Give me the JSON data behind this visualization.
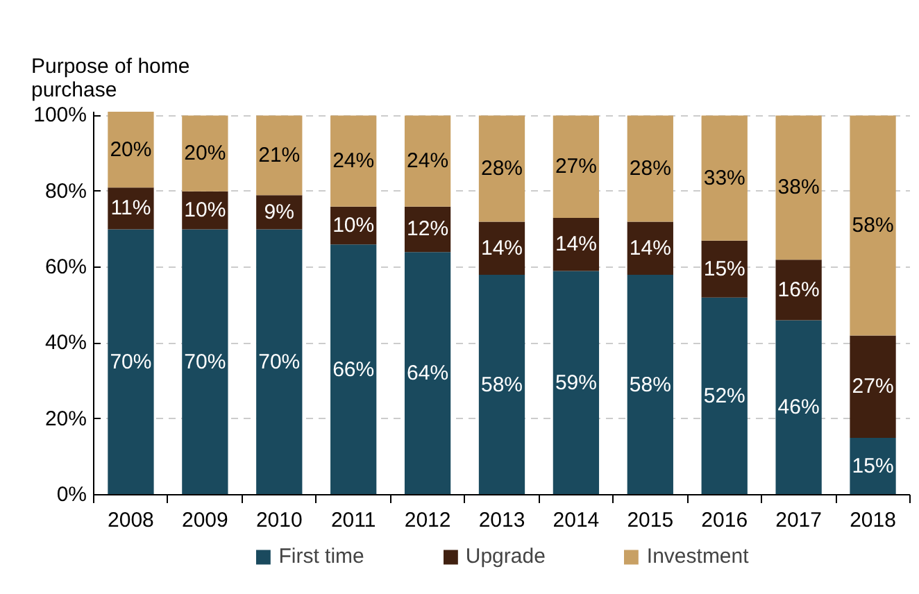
{
  "chart_data": {
    "type": "bar",
    "stacked": true,
    "ylabel": "Purpose of home purchase",
    "categories": [
      "2008",
      "2009",
      "2010",
      "2011",
      "2012",
      "2013",
      "2014",
      "2015",
      "2016",
      "2017",
      "2018"
    ],
    "series": [
      {
        "name": "First time",
        "color": "#1a4a5e",
        "values": [
          70,
          70,
          70,
          66,
          64,
          58,
          59,
          58,
          52,
          46,
          15
        ],
        "value_labels": [
          "70%",
          "70%",
          "70%",
          "66%",
          "64%",
          "58%",
          "59%",
          "58%",
          "52%",
          "46%",
          "15%"
        ]
      },
      {
        "name": "Upgrade",
        "color": "#402010",
        "values": [
          11,
          10,
          9,
          10,
          12,
          14,
          14,
          14,
          15,
          16,
          27
        ],
        "value_labels": [
          "11%",
          "10%",
          "9%",
          "10%",
          "12%",
          "14%",
          "14%",
          "14%",
          "15%",
          "16%",
          "27%"
        ]
      },
      {
        "name": "Investment",
        "color": "#c8a064",
        "values": [
          20,
          20,
          21,
          24,
          24,
          28,
          27,
          28,
          33,
          38,
          58
        ],
        "value_labels": [
          "20%",
          "20%",
          "21%",
          "24%",
          "24%",
          "28%",
          "27%",
          "28%",
          "33%",
          "38%",
          "58%"
        ]
      }
    ],
    "ylim": [
      0,
      101
    ],
    "yticks": [
      {
        "value": 0,
        "label": "0%"
      },
      {
        "value": 20,
        "label": "20%"
      },
      {
        "value": 40,
        "label": "40%"
      },
      {
        "value": 60,
        "label": "60%"
      },
      {
        "value": 80,
        "label": "80%"
      },
      {
        "value": 100,
        "label": "100%"
      }
    ],
    "grid": "y",
    "legend": "bottom"
  }
}
